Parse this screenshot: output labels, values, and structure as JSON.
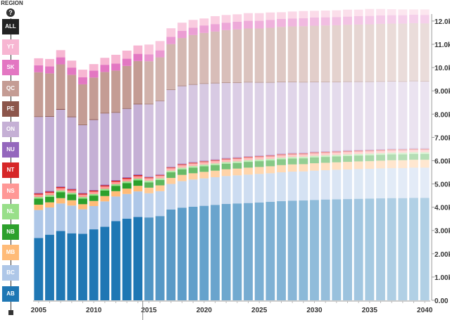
{
  "panel": {
    "title": "REGION",
    "help_icon": "question-circle-icon",
    "regions": [
      {
        "code": "ALL",
        "color": "#222222"
      },
      {
        "code": "YT",
        "color": "#f7b6d2"
      },
      {
        "code": "SK",
        "color": "#e377c2"
      },
      {
        "code": "QC",
        "color": "#c49c94"
      },
      {
        "code": "PE",
        "color": "#8c564b"
      },
      {
        "code": "ON",
        "color": "#c5b0d5"
      },
      {
        "code": "NU",
        "color": "#9467bd"
      },
      {
        "code": "NT",
        "color": "#d62728"
      },
      {
        "code": "NS",
        "color": "#ff9896"
      },
      {
        "code": "NL",
        "color": "#98df8a"
      },
      {
        "code": "NB",
        "color": "#2ca02c"
      },
      {
        "code": "MB",
        "color": "#ffbb78"
      },
      {
        "code": "BC",
        "color": "#aec7e8"
      },
      {
        "code": "AB",
        "color": "#1f77b4"
      }
    ]
  },
  "chart_data": {
    "type": "bar",
    "stacked": true,
    "x": [
      2005,
      2006,
      2007,
      2008,
      2009,
      2010,
      2011,
      2012,
      2013,
      2014,
      2015,
      2016,
      2017,
      2018,
      2019,
      2020,
      2021,
      2022,
      2023,
      2024,
      2025,
      2026,
      2027,
      2028,
      2029,
      2030,
      2031,
      2032,
      2033,
      2034,
      2035,
      2036,
      2037,
      2038,
      2039,
      2040
    ],
    "xticks": [
      "2005",
      "2010",
      "2015",
      "2020",
      "2025",
      "2030",
      "2035",
      "2040"
    ],
    "yticks": [
      "0.00",
      "1.00k",
      "2.00k",
      "3.00k",
      "4.00k",
      "5.00k",
      "6.00k",
      "7.00k",
      "8.00k",
      "9.00k",
      "10.0k",
      "11.0k",
      "12.0k"
    ],
    "ylim": [
      0,
      12300
    ],
    "series": [
      {
        "name": "AB",
        "color": "#1f77b4",
        "values": [
          2680,
          2820,
          2980,
          2880,
          2860,
          3050,
          3160,
          3400,
          3510,
          3580,
          3560,
          3620,
          3900,
          3980,
          4020,
          4060,
          4100,
          4140,
          4160,
          4180,
          4200,
          4230,
          4260,
          4280,
          4290,
          4310,
          4330,
          4340,
          4350,
          4360,
          4370,
          4380,
          4390,
          4390,
          4400,
          4400
        ]
      },
      {
        "name": "BC",
        "color": "#aec7e8",
        "values": [
          1200,
          1170,
          1180,
          1190,
          1050,
          1000,
          1090,
          1060,
          1060,
          1100,
          1040,
          1070,
          1100,
          1140,
          1170,
          1180,
          1190,
          1200,
          1210,
          1220,
          1230,
          1230,
          1240,
          1250,
          1250,
          1260,
          1260,
          1270,
          1270,
          1280,
          1280,
          1290,
          1290,
          1290,
          1300,
          1300
        ]
      },
      {
        "name": "MB",
        "color": "#ffbb78",
        "values": [
          230,
          220,
          230,
          230,
          220,
          220,
          230,
          230,
          230,
          240,
          240,
          250,
          260,
          270,
          270,
          280,
          280,
          290,
          290,
          300,
          300,
          300,
          310,
          310,
          310,
          320,
          320,
          320,
          330,
          330,
          330,
          330,
          340,
          340,
          340,
          340
        ]
      },
      {
        "name": "NB",
        "color": "#2ca02c",
        "values": [
          260,
          240,
          260,
          250,
          240,
          230,
          240,
          230,
          240,
          240,
          230,
          230,
          240,
          240,
          240,
          240,
          240,
          240,
          240,
          250,
          250,
          250,
          250,
          250,
          250,
          250,
          250,
          250,
          250,
          250,
          250,
          250,
          250,
          250,
          250,
          250
        ]
      },
      {
        "name": "NL",
        "color": "#98df8a",
        "values": [
          70,
          70,
          70,
          70,
          70,
          70,
          70,
          70,
          70,
          70,
          70,
          70,
          70,
          70,
          70,
          70,
          70,
          70,
          70,
          70,
          70,
          70,
          70,
          70,
          70,
          70,
          70,
          70,
          70,
          70,
          70,
          70,
          70,
          70,
          70,
          70
        ]
      },
      {
        "name": "NS",
        "color": "#ff9896",
        "values": [
          100,
          100,
          100,
          100,
          100,
          100,
          100,
          100,
          100,
          100,
          100,
          100,
          100,
          100,
          100,
          100,
          100,
          100,
          100,
          100,
          100,
          100,
          100,
          100,
          100,
          100,
          100,
          100,
          100,
          100,
          100,
          100,
          100,
          100,
          100,
          100
        ]
      },
      {
        "name": "NT",
        "color": "#d62728",
        "values": [
          50,
          50,
          50,
          50,
          50,
          50,
          50,
          50,
          50,
          50,
          50,
          50,
          50,
          50,
          50,
          50,
          50,
          50,
          50,
          50,
          50,
          50,
          50,
          50,
          50,
          50,
          50,
          50,
          50,
          50,
          50,
          50,
          50,
          50,
          50,
          50
        ]
      },
      {
        "name": "NU",
        "color": "#9467bd",
        "values": [
          30,
          30,
          30,
          30,
          30,
          30,
          30,
          30,
          30,
          30,
          30,
          30,
          30,
          30,
          30,
          30,
          30,
          30,
          30,
          30,
          30,
          30,
          30,
          30,
          30,
          30,
          30,
          30,
          30,
          30,
          30,
          30,
          30,
          30,
          30,
          30
        ]
      },
      {
        "name": "ON",
        "color": "#c5b0d5",
        "values": [
          3260,
          3190,
          3290,
          3070,
          2910,
          3000,
          3060,
          2890,
          2940,
          3010,
          3100,
          3140,
          3290,
          3320,
          3310,
          3290,
          3260,
          3220,
          3190,
          3160,
          3120,
          3090,
          3060,
          3030,
          3010,
          2980,
          2960,
          2940,
          2930,
          2910,
          2900,
          2890,
          2880,
          2870,
          2870,
          2860
        ]
      },
      {
        "name": "PE",
        "color": "#8c564b",
        "values": [
          30,
          30,
          30,
          30,
          30,
          30,
          30,
          30,
          30,
          30,
          30,
          30,
          30,
          30,
          30,
          30,
          30,
          30,
          30,
          30,
          30,
          30,
          30,
          30,
          30,
          30,
          30,
          30,
          30,
          30,
          30,
          30,
          30,
          30,
          30,
          30
        ]
      },
      {
        "name": "QC",
        "color": "#c49c94",
        "values": [
          1890,
          1830,
          1920,
          1790,
          1720,
          1790,
          1750,
          1780,
          1810,
          1830,
          1820,
          1850,
          1940,
          2040,
          2110,
          2160,
          2200,
          2240,
          2270,
          2290,
          2300,
          2330,
          2350,
          2370,
          2390,
          2400,
          2410,
          2420,
          2430,
          2440,
          2450,
          2460,
          2460,
          2470,
          2470,
          2470
        ]
      },
      {
        "name": "SK",
        "color": "#e377c2",
        "values": [
          300,
          300,
          300,
          310,
          300,
          300,
          310,
          300,
          310,
          310,
          300,
          300,
          310,
          310,
          310,
          320,
          320,
          320,
          330,
          330,
          330,
          340,
          340,
          340,
          340,
          350,
          350,
          350,
          350,
          360,
          360,
          360,
          360,
          360,
          360,
          360
        ]
      },
      {
        "name": "YT",
        "color": "#f7b6d2",
        "values": [
          300,
          320,
          310,
          300,
          330,
          280,
          300,
          380,
          350,
          360,
          420,
          400,
          370,
          350,
          340,
          300,
          340,
          330,
          320,
          330,
          330,
          320,
          290,
          300,
          310,
          290,
          290,
          290,
          300,
          280,
          300,
          280,
          260,
          250,
          230,
          240
        ]
      }
    ]
  }
}
